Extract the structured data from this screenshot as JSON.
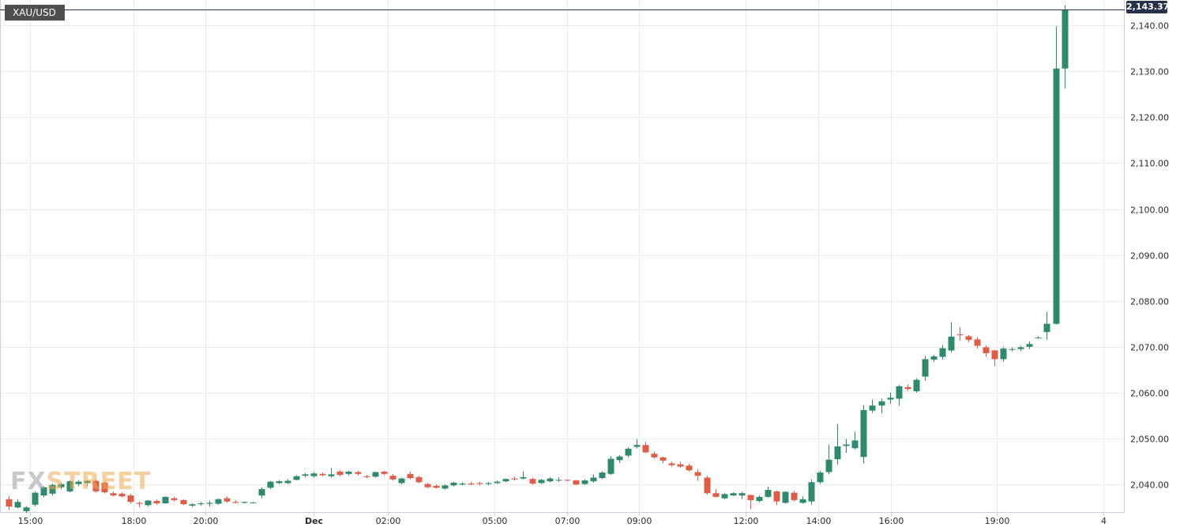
{
  "chart_data": {
    "type": "candlestick",
    "symbol": "XAU/USD",
    "last_price_label": "2,143.37",
    "y_range": [
      2034,
      2144.5
    ],
    "y_ticks": [
      2040,
      2050,
      2060,
      2070,
      2080,
      2090,
      2100,
      2110,
      2120,
      2130,
      2140
    ],
    "y_tick_labels": [
      "2,040.00",
      "2,050.00",
      "2,060.00",
      "2,070.00",
      "2,080.00",
      "2,090.00",
      "2,100.00",
      "2,110.00",
      "2,120.00",
      "2,130.00",
      "2,140.00"
    ],
    "x_ticks": [
      {
        "label": "15:00",
        "index": 2.5
      },
      {
        "label": "18:00",
        "index": 14.3
      },
      {
        "label": "20:00",
        "index": 22.6
      },
      {
        "label": "Dec",
        "index": 35.0,
        "bold": true
      },
      {
        "label": "02:00",
        "index": 43.5
      },
      {
        "label": "05:00",
        "index": 55.7
      },
      {
        "label": "07:00",
        "index": 64.0
      },
      {
        "label": "09:00",
        "index": 72.3
      },
      {
        "label": "12:00",
        "index": 84.5
      },
      {
        "label": "14:00",
        "index": 92.8
      },
      {
        "label": "16:00",
        "index": 101.1
      },
      {
        "label": "19:00",
        "index": 113.3
      },
      {
        "label": "4",
        "index": 125.5
      }
    ],
    "grid": true,
    "up_color": "#2d8a6e",
    "down_color": "#e05c45",
    "candles": [
      [
        2036.8,
        2037.5,
        2034.5,
        2035.2
      ],
      [
        2035.0,
        2036.8,
        2034.8,
        2036.2
      ],
      [
        2034.2,
        2035.3,
        2033.8,
        2035.0
      ],
      [
        2035.6,
        2038.5,
        2035.2,
        2038.2
      ],
      [
        2037.6,
        2039.6,
        2037.2,
        2039.4
      ],
      [
        2038.0,
        2040.2,
        2037.6,
        2039.9
      ],
      [
        2039.4,
        2040.5,
        2039.0,
        2040.1
      ],
      [
        2038.5,
        2040.9,
        2038.3,
        2040.7
      ],
      [
        2040.1,
        2041.0,
        2039.6,
        2040.6
      ],
      [
        2040.3,
        2041.0,
        2039.6,
        2040.8
      ],
      [
        2040.8,
        2041.2,
        2038.2,
        2038.5
      ],
      [
        2040.4,
        2040.6,
        2038.0,
        2038.3
      ],
      [
        2038.1,
        2038.5,
        2037.4,
        2037.6
      ],
      [
        2038.0,
        2038.3,
        2037.2,
        2037.4
      ],
      [
        2037.6,
        2038.0,
        2035.8,
        2036.2
      ],
      [
        2036.0,
        2036.3,
        2035.0,
        2035.8
      ],
      [
        2035.5,
        2036.6,
        2035.2,
        2036.5
      ],
      [
        2036.4,
        2036.8,
        2035.6,
        2035.9
      ],
      [
        2035.9,
        2037.4,
        2035.8,
        2037.3
      ],
      [
        2037.0,
        2037.3,
        2036.3,
        2036.6
      ],
      [
        2036.6,
        2036.8,
        2035.5,
        2035.7
      ],
      [
        2035.4,
        2035.9,
        2035.1,
        2035.7
      ],
      [
        2035.8,
        2036.2,
        2035.4,
        2035.9
      ],
      [
        2035.8,
        2036.5,
        2035.2,
        2036.0
      ],
      [
        2035.8,
        2036.9,
        2035.6,
        2036.8
      ],
      [
        2037.0,
        2037.4,
        2036.0,
        2036.3
      ],
      [
        2036.2,
        2036.6,
        2035.9,
        2036.0
      ],
      [
        2036.0,
        2036.3,
        2035.9,
        2036.2
      ],
      [
        2036.0,
        2036.2,
        2035.9,
        2036.1
      ],
      [
        2037.6,
        2039.4,
        2037.0,
        2039.0
      ],
      [
        2039.3,
        2040.8,
        2039.0,
        2040.6
      ],
      [
        2040.3,
        2041.0,
        2040.1,
        2040.7
      ],
      [
        2040.3,
        2041.2,
        2040.1,
        2040.8
      ],
      [
        2041.0,
        2042.0,
        2040.9,
        2041.8
      ],
      [
        2041.9,
        2042.5,
        2041.6,
        2042.2
      ],
      [
        2041.8,
        2042.7,
        2041.5,
        2042.4
      ],
      [
        2042.3,
        2042.6,
        2041.8,
        2042.0
      ],
      [
        2041.8,
        2043.6,
        2041.5,
        2042.2
      ],
      [
        2042.8,
        2043.1,
        2041.8,
        2042.1
      ],
      [
        2042.3,
        2043.0,
        2042.0,
        2042.8
      ],
      [
        2042.7,
        2043.0,
        2042.0,
        2042.3
      ],
      [
        2041.8,
        2042.1,
        2041.4,
        2041.6
      ],
      [
        2041.7,
        2042.8,
        2041.5,
        2042.7
      ],
      [
        2042.8,
        2043.0,
        2042.0,
        2042.3
      ],
      [
        2041.9,
        2042.3,
        2040.8,
        2041.1
      ],
      [
        2040.3,
        2041.5,
        2040.0,
        2041.3
      ],
      [
        2042.3,
        2042.8,
        2041.1,
        2041.4
      ],
      [
        2041.6,
        2041.9,
        2040.3,
        2040.5
      ],
      [
        2040.1,
        2040.4,
        2039.2,
        2039.4
      ],
      [
        2039.7,
        2040.0,
        2039.1,
        2039.3
      ],
      [
        2039.1,
        2040.0,
        2038.9,
        2039.8
      ],
      [
        2039.8,
        2040.6,
        2039.6,
        2040.4
      ],
      [
        2040.0,
        2040.5,
        2039.8,
        2040.2
      ],
      [
        2040.2,
        2040.6,
        2039.9,
        2040.0
      ],
      [
        2040.3,
        2040.6,
        2039.8,
        2040.1
      ],
      [
        2040.1,
        2040.5,
        2039.9,
        2040.3
      ],
      [
        2040.3,
        2040.9,
        2040.1,
        2040.6
      ],
      [
        2040.7,
        2041.3,
        2040.5,
        2041.2
      ],
      [
        2041.3,
        2041.7,
        2040.9,
        2041.1
      ],
      [
        2041.3,
        2042.8,
        2041.1,
        2041.6
      ],
      [
        2041.2,
        2041.5,
        2039.9,
        2040.2
      ],
      [
        2040.3,
        2041.2,
        2040.1,
        2041.0
      ],
      [
        2040.7,
        2041.6,
        2040.5,
        2041.3
      ],
      [
        2040.9,
        2041.6,
        2040.6,
        2041.0
      ],
      [
        2041.0,
        2041.1,
        2040.7,
        2040.9
      ],
      [
        2040.9,
        2041.0,
        2039.8,
        2040.0
      ],
      [
        2040.1,
        2041.1,
        2039.9,
        2040.9
      ],
      [
        2040.7,
        2042.2,
        2040.4,
        2041.5
      ],
      [
        2041.4,
        2042.9,
        2041.2,
        2042.6
      ],
      [
        2042.3,
        2046.2,
        2042.1,
        2045.6
      ],
      [
        2045.3,
        2046.4,
        2044.7,
        2046.1
      ],
      [
        2046.3,
        2048.1,
        2045.9,
        2047.8
      ],
      [
        2048.2,
        2049.9,
        2047.9,
        2048.6
      ],
      [
        2048.6,
        2049.3,
        2046.8,
        2047.0
      ],
      [
        2046.7,
        2047.2,
        2045.6,
        2045.9
      ],
      [
        2045.9,
        2046.1,
        2044.6,
        2045.2
      ],
      [
        2044.6,
        2045.0,
        2043.9,
        2044.2
      ],
      [
        2044.4,
        2045.0,
        2043.6,
        2043.9
      ],
      [
        2044.1,
        2044.5,
        2042.8,
        2043.1
      ],
      [
        2042.7,
        2043.3,
        2040.8,
        2041.9
      ],
      [
        2041.5,
        2041.9,
        2037.8,
        2038.1
      ],
      [
        2038.1,
        2039.0,
        2037.2,
        2037.3
      ],
      [
        2037.0,
        2038.2,
        2036.8,
        2037.9
      ],
      [
        2037.6,
        2038.3,
        2037.5,
        2038.1
      ],
      [
        2037.6,
        2038.4,
        2036.8,
        2038.1
      ],
      [
        2037.7,
        2037.8,
        2034.6,
        2036.6
      ],
      [
        2036.4,
        2037.6,
        2036.1,
        2037.3
      ],
      [
        2037.3,
        2039.5,
        2037.1,
        2038.8
      ],
      [
        2038.5,
        2038.7,
        2035.5,
        2036.3
      ],
      [
        2036.0,
        2038.5,
        2035.8,
        2038.4
      ],
      [
        2038.2,
        2038.6,
        2036.3,
        2036.6
      ],
      [
        2036.0,
        2037.4,
        2035.8,
        2036.8
      ],
      [
        2036.3,
        2041.1,
        2035.6,
        2040.5
      ],
      [
        2040.5,
        2043.0,
        2040.1,
        2042.6
      ],
      [
        2042.7,
        2048.7,
        2042.2,
        2045.4
      ],
      [
        2045.5,
        2053.2,
        2044.3,
        2048.3
      ],
      [
        2048.4,
        2049.9,
        2046.9,
        2048.7
      ],
      [
        2047.9,
        2051.5,
        2047.6,
        2049.6
      ],
      [
        2046.0,
        2057.3,
        2044.6,
        2056.2
      ],
      [
        2056.1,
        2058.5,
        2055.6,
        2057.2
      ],
      [
        2057.2,
        2058.7,
        2055.5,
        2058.1
      ],
      [
        2058.5,
        2060.0,
        2057.6,
        2058.9
      ],
      [
        2058.7,
        2061.7,
        2057.2,
        2061.4
      ],
      [
        2061.2,
        2061.8,
        2060.4,
        2060.8
      ],
      [
        2060.3,
        2063.1,
        2060.0,
        2062.8
      ],
      [
        2063.5,
        2068.0,
        2062.6,
        2067.3
      ],
      [
        2067.2,
        2068.2,
        2066.7,
        2067.9
      ],
      [
        2067.8,
        2070.4,
        2067.2,
        2069.7
      ],
      [
        2069.2,
        2075.4,
        2068.8,
        2072.2
      ],
      [
        2072.7,
        2074.3,
        2071.3,
        2072.5
      ],
      [
        2072.3,
        2072.6,
        2071.0,
        2071.5
      ],
      [
        2071.6,
        2072.1,
        2069.6,
        2070.2
      ],
      [
        2069.9,
        2070.3,
        2067.8,
        2068.6
      ],
      [
        2069.2,
        2069.3,
        2065.8,
        2067.3
      ],
      [
        2067.3,
        2070.0,
        2066.7,
        2069.6
      ],
      [
        2069.4,
        2069.9,
        2069.0,
        2069.5
      ],
      [
        2069.5,
        2070.2,
        2069.1,
        2069.9
      ],
      [
        2070.0,
        2071.2,
        2069.5,
        2070.6
      ],
      [
        2071.9,
        2072.3,
        2071.8,
        2072.0
      ],
      [
        2073.2,
        2077.6,
        2071.5,
        2075.0
      ],
      [
        2075.0,
        2139.8,
        2074.8,
        2130.6
      ],
      [
        2130.6,
        2144.4,
        2126.2,
        2143.4
      ]
    ]
  }
}
